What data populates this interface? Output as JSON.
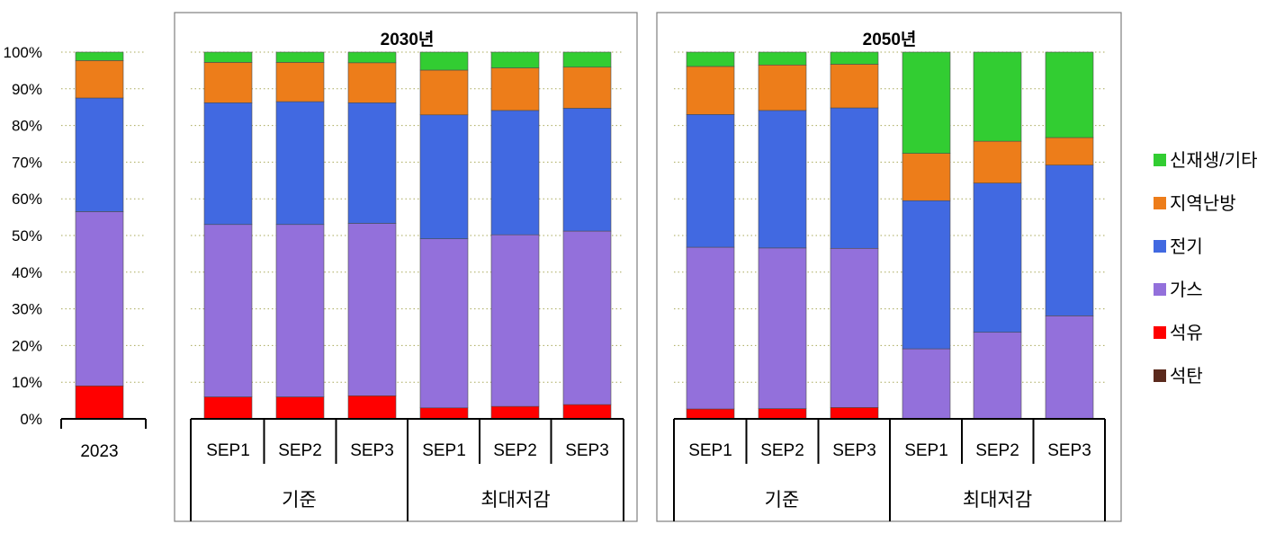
{
  "chart_data": {
    "type": "bar",
    "stacked": true,
    "normalized": true,
    "y_axis": {
      "ylim": [
        0,
        100
      ],
      "ticks": [
        "0%",
        "10%",
        "20%",
        "30%",
        "40%",
        "50%",
        "60%",
        "70%",
        "80%",
        "90%",
        "100%"
      ],
      "grid": "dotted horizontal"
    },
    "legend": {
      "placement": "right",
      "order": [
        "신재생/기타",
        "지역난방",
        "전기",
        "가스",
        "석유",
        "석탄"
      ]
    },
    "series_colors": {
      "석탄": "#5b2a1d",
      "석유": "#ff0000",
      "가스": "#9370db",
      "전기": "#4169e1",
      "지역난방": "#ed7d1a",
      "신재생/기타": "#32cd32"
    },
    "stack_order": [
      "석탄",
      "석유",
      "가스",
      "전기",
      "지역난방",
      "신재생/기타"
    ],
    "panels": [
      {
        "title": "",
        "groups": [
          {
            "label": "",
            "bars": [
              {
                "label": "2023",
                "values": {
                  "석탄": 0.1,
                  "석유": 8.9,
                  "가스": 47.5,
                  "전기": 31.0,
                  "지역난방": 10.2,
                  "신재생/기타": 2.3
                }
              }
            ]
          }
        ]
      },
      {
        "title": "2030년",
        "groups": [
          {
            "label": "기준",
            "bars": [
              {
                "label": "SEP1",
                "values": {
                  "석탄": 0.1,
                  "석유": 5.9,
                  "가스": 47.0,
                  "전기": 33.2,
                  "지역난방": 11.0,
                  "신재생/기타": 2.8
                }
              },
              {
                "label": "SEP2",
                "values": {
                  "석탄": 0.1,
                  "석유": 5.9,
                  "가스": 47.0,
                  "전기": 33.5,
                  "지역난방": 10.7,
                  "신재생/기타": 2.8
                }
              },
              {
                "label": "SEP3",
                "values": {
                  "석탄": 0.1,
                  "석유": 6.2,
                  "가스": 47.0,
                  "전기": 32.9,
                  "지역난방": 10.9,
                  "신재생/기타": 2.9
                }
              }
            ]
          },
          {
            "label": "최대저감",
            "bars": [
              {
                "label": "SEP1",
                "values": {
                  "석탄": 0.1,
                  "석유": 2.9,
                  "가스": 46.1,
                  "전기": 33.8,
                  "지역난방": 12.2,
                  "신재생/기타": 4.9
                }
              },
              {
                "label": "SEP2",
                "values": {
                  "석탄": 0.1,
                  "석유": 3.3,
                  "가스": 46.8,
                  "전기": 33.9,
                  "지역난방": 11.6,
                  "신재생/기타": 4.3
                }
              },
              {
                "label": "SEP3",
                "values": {
                  "석탄": 0.1,
                  "석유": 3.8,
                  "가스": 47.3,
                  "전기": 33.5,
                  "지역난방": 11.2,
                  "신재생/기타": 4.1
                }
              }
            ]
          }
        ]
      },
      {
        "title": "2050년",
        "groups": [
          {
            "label": "기준",
            "bars": [
              {
                "label": "SEP1",
                "values": {
                  "석탄": 0.1,
                  "석유": 2.6,
                  "가스": 44.1,
                  "전기": 36.2,
                  "지역난방": 13.1,
                  "신재생/기타": 3.9
                }
              },
              {
                "label": "SEP2",
                "values": {
                  "석탄": 0.1,
                  "석유": 2.7,
                  "가스": 43.8,
                  "전기": 37.5,
                  "지역난방": 12.4,
                  "신재생/기타": 3.5
                }
              },
              {
                "label": "SEP3",
                "values": {
                  "석탄": 0.1,
                  "석유": 3.0,
                  "가스": 43.4,
                  "전기": 38.3,
                  "지역난방": 11.9,
                  "신재생/기타": 3.3
                }
              }
            ]
          },
          {
            "label": "최대저감",
            "bars": [
              {
                "label": "SEP1",
                "values": {
                  "석탄": 0,
                  "석유": 0,
                  "가스": 19.1,
                  "전기": 40.4,
                  "지역난방": 12.9,
                  "신재생/기타": 27.6
                }
              },
              {
                "label": "SEP2",
                "values": {
                  "석탄": 0,
                  "석유": 0,
                  "가스": 23.6,
                  "전기": 40.7,
                  "지역난방": 11.4,
                  "신재생/기타": 24.3
                }
              },
              {
                "label": "SEP3",
                "values": {
                  "석탄": 0,
                  "석유": 0,
                  "가스": 28.1,
                  "전기": 41.1,
                  "지역난방": 7.5,
                  "신재생/기타": 23.3
                }
              }
            ]
          }
        ]
      }
    ]
  }
}
